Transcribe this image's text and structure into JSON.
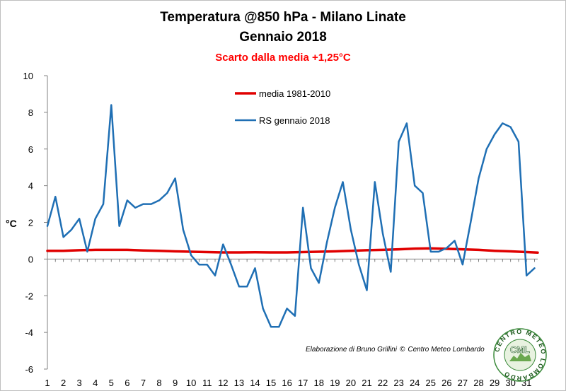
{
  "chart_data": {
    "type": "line",
    "title": "Temperatura @850 hPa - Milano Linate",
    "subtitle": "Gennaio 2018",
    "annotation": "Scarto dalla media +1,25°C",
    "ylabel": "°C",
    "xlabel": "",
    "x_ticks": [
      "1",
      "2",
      "3",
      "4",
      "5",
      "6",
      "7",
      "8",
      "9",
      "10",
      "11",
      "12",
      "13",
      "14",
      "15",
      "16",
      "17",
      "18",
      "19",
      "20",
      "21",
      "22",
      "23",
      "24",
      "25",
      "26",
      "27",
      "28",
      "29",
      "30",
      "31"
    ],
    "y_ticks": [
      "10",
      "8",
      "6",
      "4",
      "2",
      "0",
      "-2",
      "-4",
      "-6"
    ],
    "xlim": [
      1,
      31.7
    ],
    "ylim": [
      -6,
      10
    ],
    "grid": false,
    "legend_placement": "top-center",
    "series": [
      {
        "name": "media 1981-2010",
        "color": "#e00000",
        "x": [
          1,
          2,
          3,
          4,
          5,
          6,
          7,
          8,
          9,
          10,
          11,
          12,
          13,
          14,
          15,
          16,
          17,
          18,
          19,
          20,
          21,
          22,
          23,
          24,
          25,
          26,
          27,
          28,
          29,
          30,
          31,
          31.7
        ],
        "values": [
          0.45,
          0.45,
          0.48,
          0.5,
          0.5,
          0.5,
          0.47,
          0.45,
          0.42,
          0.4,
          0.38,
          0.36,
          0.36,
          0.37,
          0.36,
          0.36,
          0.38,
          0.4,
          0.42,
          0.45,
          0.48,
          0.5,
          0.53,
          0.57,
          0.58,
          0.56,
          0.53,
          0.5,
          0.45,
          0.42,
          0.38,
          0.35
        ]
      },
      {
        "name": "RS gennaio 2018",
        "color": "#1f6fb4",
        "x": [
          1,
          1.5,
          2,
          2.5,
          3,
          3.5,
          4,
          4.5,
          5,
          5.5,
          6,
          6.5,
          7,
          7.5,
          8,
          8.5,
          9,
          9.5,
          10,
          10.5,
          11,
          11.5,
          12,
          12.5,
          13,
          13.5,
          14,
          14.5,
          15,
          15.5,
          16,
          16.5,
          17,
          17.5,
          18,
          18.5,
          19,
          19.5,
          20,
          20.5,
          21,
          21.5,
          22,
          22.5,
          23,
          23.5,
          24,
          24.5,
          25,
          25.5,
          26,
          26.5,
          27,
          27.5,
          28,
          28.5,
          29,
          29.5,
          30,
          30.5,
          31,
          31.5
        ],
        "values": [
          1.8,
          3.4,
          1.2,
          1.6,
          2.2,
          0.4,
          2.2,
          3.0,
          8.4,
          1.8,
          3.2,
          2.8,
          3.0,
          3.0,
          3.2,
          3.6,
          4.4,
          1.6,
          0.2,
          -0.3,
          -0.3,
          -0.9,
          0.8,
          -0.3,
          -1.5,
          -1.5,
          -0.5,
          -2.7,
          -3.7,
          -3.7,
          -2.7,
          -3.1,
          2.8,
          -0.5,
          -1.3,
          0.9,
          2.8,
          4.2,
          1.6,
          -0.3,
          -1.7,
          4.2,
          1.4,
          -0.7,
          6.4,
          7.4,
          4.0,
          3.6,
          0.4,
          0.4,
          0.6,
          1.0,
          -0.3,
          2.0,
          4.4,
          6.0,
          6.8,
          7.4,
          7.2,
          6.4,
          -0.9,
          -0.5
        ]
      }
    ]
  },
  "credit": {
    "text_left": "Elaborazione di Bruno Grillini",
    "copyright_symbol": "©",
    "text_right": "Centro Meteo Lombardo"
  },
  "logo": {
    "ring_text": "CENTRO METEO LOMBARDO",
    "center_text": "CML",
    "colors": {
      "ring": "#3a8a3a",
      "fill": "#e8f2e0",
      "text": "#1d5a1d"
    }
  }
}
